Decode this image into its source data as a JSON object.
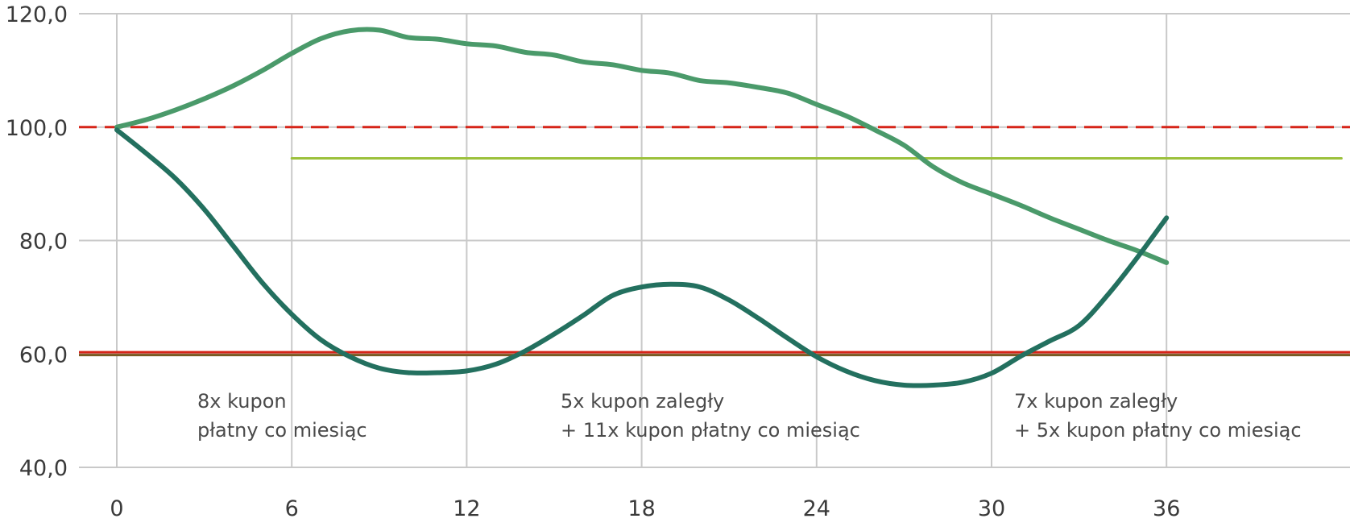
{
  "chart_data": {
    "type": "line",
    "title": "",
    "xlabel": "",
    "ylabel": "",
    "xlim": [
      0,
      42
    ],
    "ylim": [
      40,
      120
    ],
    "x_ticks": [
      "0",
      "6",
      "12",
      "18",
      "24",
      "30",
      "36"
    ],
    "y_ticks": [
      "40,0",
      "60,0",
      "80,0",
      "100,0",
      "120,0"
    ],
    "grid": true,
    "legend": "none",
    "series": [
      {
        "color": "#4a9a6a",
        "x": [
          0,
          1,
          2,
          3,
          4,
          5,
          6,
          7,
          8,
          9,
          10,
          11,
          12,
          13,
          14,
          15,
          16,
          17,
          18,
          19,
          20,
          21,
          22,
          23,
          24,
          25,
          26,
          27,
          28,
          29,
          30,
          31,
          32,
          33,
          34,
          35,
          36
        ],
        "values": [
          100,
          101.3,
          103,
          105,
          107.3,
          110,
          113,
          115.6,
          117,
          117.1,
          115.8,
          115.5,
          114.7,
          114.3,
          113.2,
          112.7,
          111.5,
          111,
          110,
          109.5,
          108.2,
          107.8,
          107,
          106,
          104,
          102,
          99.5,
          96.8,
          93,
          90.2,
          88.2,
          86.2,
          84,
          82,
          80,
          78.2,
          76.1
        ]
      },
      {
        "color": "#23705f",
        "x": [
          0,
          1,
          2,
          3,
          4,
          5,
          6,
          7,
          8,
          9,
          10,
          11,
          12,
          13,
          14,
          15,
          16,
          17,
          18,
          19,
          20,
          21,
          22,
          23,
          24,
          25,
          26,
          27,
          28,
          29,
          30,
          31,
          32,
          33,
          34,
          35,
          36
        ],
        "values": [
          99.5,
          95.4,
          91,
          85.5,
          79,
          72.5,
          67,
          62.5,
          59.5,
          57.5,
          56.7,
          56.7,
          57,
          58.2,
          60.5,
          63.5,
          66.8,
          70.3,
          71.8,
          72.3,
          71.8,
          69.5,
          66.3,
          62.8,
          59.5,
          57,
          55.3,
          54.5,
          54.5,
          55,
          56.6,
          59.6,
          62.3,
          65,
          70.5,
          77,
          84
        ]
      },
      {
        "color": "#9cc13c",
        "x": [
          6,
          42
        ],
        "values": [
          94.5,
          94.5
        ]
      }
    ],
    "reference_lines": [
      {
        "y": 100,
        "color": "#d62418",
        "style": "dashed"
      },
      {
        "y": 60.3,
        "color": "#d62418",
        "style": "solid"
      },
      {
        "y": 59.8,
        "color": "#7a5a22",
        "style": "solid"
      }
    ],
    "annotations": [
      {
        "lines": [
          "8x kupon",
          "płatny co miesiąc"
        ]
      },
      {
        "lines": [
          "5x kupon zaległy",
          "+ 11x kupon płatny co miesiąc"
        ]
      },
      {
        "lines": [
          "7x kupon zaległy",
          "+ 5x kupon płatny co miesiąc"
        ]
      }
    ]
  }
}
